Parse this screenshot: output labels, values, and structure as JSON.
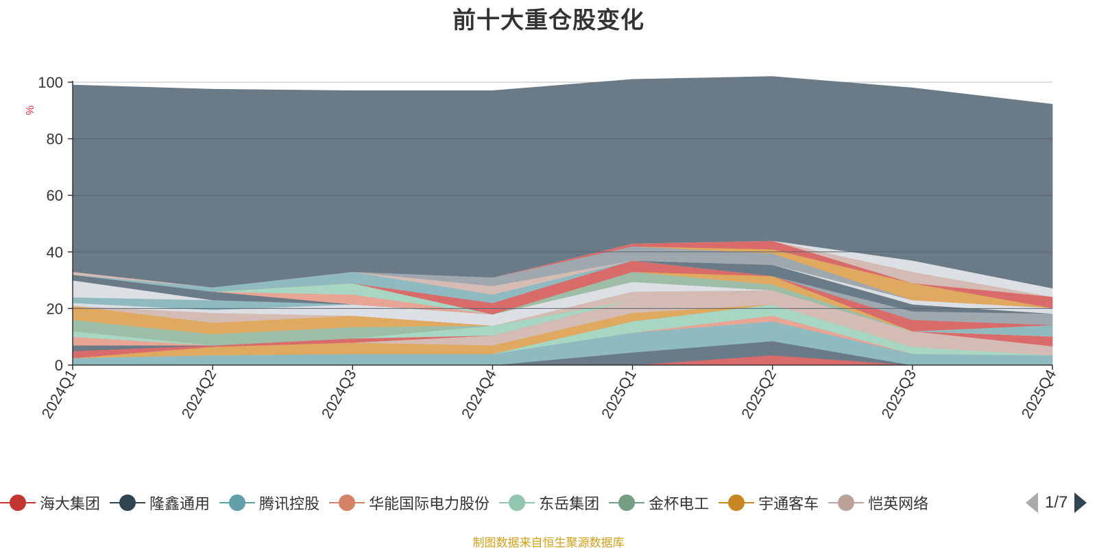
{
  "chart_data": {
    "type": "area",
    "title": "前十大重仓股变化",
    "ylabel": "%",
    "ylim": [
      0,
      100
    ],
    "yticks": [
      0,
      20,
      40,
      60,
      80,
      100
    ],
    "grid": true,
    "legend_position": "bottom",
    "categories": [
      "2024Q1",
      "2024Q2",
      "2024Q3",
      "2024Q4",
      "2025Q1",
      "2025Q2",
      "2025Q3",
      "2025Q4"
    ],
    "series": [
      {
        "name": "海大集团",
        "color": "#d96b6b",
        "values": [
          0,
          0,
          0,
          0,
          0,
          3.5,
          0,
          0
        ]
      },
      {
        "name": "隆鑫通用",
        "color": "#6a7a87",
        "values": [
          0,
          0,
          0,
          0,
          4.5,
          5,
          0,
          0
        ]
      },
      {
        "name": "腾讯控股",
        "color": "#8fbac0",
        "values": [
          2.5,
          3.5,
          4,
          4,
          7,
          7,
          4,
          3.5
        ]
      },
      {
        "name": "华能国际电力股份",
        "color": "#e8a494",
        "values": [
          0,
          0,
          0,
          0,
          0,
          2,
          0,
          0
        ]
      },
      {
        "name": "东岳集团",
        "color": "#a7d6c3",
        "values": [
          0,
          0,
          0,
          0,
          4,
          4,
          2.5,
          0
        ]
      },
      {
        "name": "金杯电工",
        "color": "#9dbda6",
        "values": [
          0,
          0,
          0,
          0,
          0,
          0,
          0,
          0
        ]
      },
      {
        "name": "宇通客车",
        "color": "#dfa95f",
        "values": [
          0,
          3,
          4,
          3,
          3,
          0,
          0,
          0
        ]
      },
      {
        "name": "恺英网络",
        "color": "#d4bbb4",
        "values": [
          0,
          0,
          0,
          3.5,
          4.5,
          5,
          5.5,
          3.2
        ]
      },
      {
        "color": "#d96b6b",
        "values": [
          2.5,
          0.5,
          1.5,
          0,
          0,
          0,
          0,
          3.5
        ]
      },
      {
        "color": "#6a7a87",
        "values": [
          2,
          0,
          0,
          0,
          0,
          0,
          0,
          0
        ]
      },
      {
        "color": "#e8a494",
        "values": [
          3,
          0,
          0,
          0,
          0,
          0,
          0,
          0
        ]
      },
      {
        "color": "#a7d6c3",
        "values": [
          2,
          0,
          0,
          3.5,
          0,
          0,
          0,
          0
        ]
      },
      {
        "color": "#9dbda6",
        "values": [
          4,
          4,
          4,
          0,
          0,
          0,
          0,
          0
        ]
      },
      {
        "color": "#dfa95f",
        "values": [
          5,
          4,
          4,
          0,
          0,
          0,
          0,
          0
        ]
      },
      {
        "color": "#d4bbb4",
        "values": [
          0,
          3.5,
          0,
          0,
          3,
          0,
          0,
          0
        ]
      },
      {
        "color": "#dcdfe4",
        "values": [
          1,
          1,
          4,
          4,
          3.5,
          0,
          0,
          0
        ]
      },
      {
        "color": "#8fbac0",
        "values": [
          2,
          3.5,
          0,
          0,
          0,
          0,
          0,
          4
        ]
      },
      {
        "color": "#dcdfe4",
        "values": [
          6,
          0,
          0,
          0,
          0,
          0,
          0,
          0
        ]
      },
      {
        "color": "#6a7a87",
        "values": [
          2,
          3,
          0,
          0,
          0,
          0,
          0,
          0
        ]
      },
      {
        "color": "#e8a494",
        "values": [
          0,
          0,
          3.5,
          0,
          0,
          0,
          0,
          0
        ]
      },
      {
        "color": "#a7d6c3",
        "values": [
          0,
          0,
          4,
          0,
          0,
          0,
          0,
          0
        ]
      },
      {
        "color": "#9dbda6",
        "values": [
          0,
          0,
          0,
          0,
          3.5,
          2,
          0,
          0
        ]
      },
      {
        "color": "#dfa95f",
        "values": [
          0,
          0,
          0,
          0,
          0,
          3,
          0,
          0
        ]
      },
      {
        "color": "#d96b6b",
        "values": [
          0,
          0,
          0,
          4,
          4,
          0,
          0,
          0
        ]
      },
      {
        "color": "#d96b6b",
        "values": [
          0,
          0,
          0,
          0,
          0,
          0,
          4,
          0
        ]
      },
      {
        "color": "#a0a8af",
        "values": [
          0,
          0,
          0,
          0,
          0,
          0,
          3,
          4
        ]
      },
      {
        "color": "#8fbac0",
        "values": [
          0,
          1.5,
          4,
          3,
          0,
          0,
          0,
          0
        ]
      },
      {
        "color": "#d4bbb4",
        "values": [
          1,
          0,
          0,
          3,
          0,
          0,
          0,
          0
        ]
      },
      {
        "color": "#6a7a87",
        "values": [
          0,
          0,
          0,
          0,
          0,
          4,
          2.5,
          0
        ]
      },
      {
        "color": "#dcdfe4",
        "values": [
          0,
          0,
          0,
          0,
          0,
          0,
          1.5,
          2
        ]
      },
      {
        "color": "#a0a8af",
        "values": [
          0,
          0,
          0,
          3,
          5,
          4,
          0,
          0
        ]
      },
      {
        "color": "#dfa95f",
        "values": [
          0,
          0,
          0,
          0,
          0,
          1.5,
          6,
          0
        ]
      },
      {
        "color": "#d96b6b",
        "values": [
          0,
          0,
          0,
          0,
          1,
          3,
          0,
          4
        ]
      },
      {
        "color": "#d4bbb4",
        "values": [
          0,
          0,
          0,
          0,
          0,
          0,
          4,
          0
        ]
      },
      {
        "color": "#dcdfe4",
        "values": [
          0,
          0,
          0,
          0,
          0,
          0,
          4,
          3
        ]
      },
      {
        "color": "#6a7a87",
        "values": [
          66,
          70,
          64,
          66,
          58,
          58,
          61,
          65
        ]
      }
    ]
  },
  "legend": {
    "items": [
      {
        "label": "海大集团",
        "color": "#c23531"
      },
      {
        "label": "隆鑫通用",
        "color": "#2f4554"
      },
      {
        "label": "腾讯控股",
        "color": "#61a0a8"
      },
      {
        "label": "华能国际电力股份",
        "color": "#d48265"
      },
      {
        "label": "东岳集团",
        "color": "#91c7ae"
      },
      {
        "label": "金杯电工",
        "color": "#749f83"
      },
      {
        "label": "宇通客车",
        "color": "#ca8622"
      },
      {
        "label": "恺英网络",
        "color": "#bda29a"
      }
    ],
    "page_text": "1/7"
  },
  "source_note": "制图数据来自恒生聚源数据库"
}
